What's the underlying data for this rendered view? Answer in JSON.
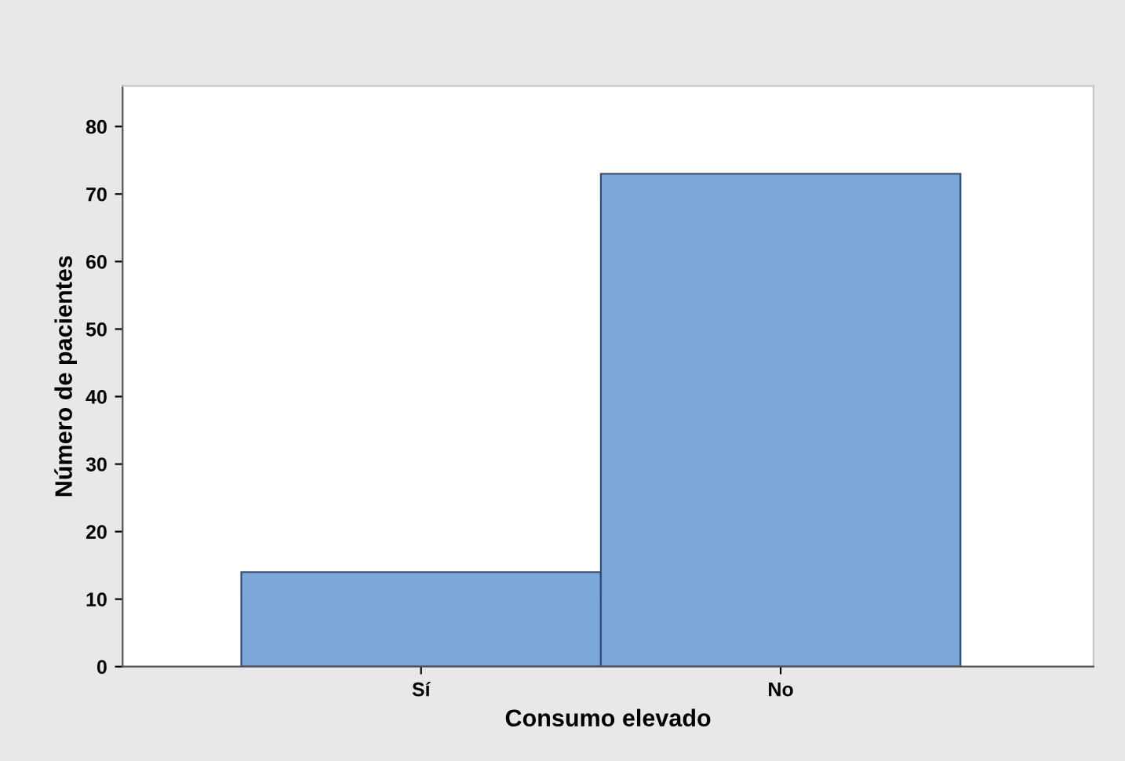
{
  "chart_data": {
    "type": "bar",
    "xlabel": "Consumo elevado",
    "ylabel": "Número de pacientes",
    "categories": [
      "Sí",
      "No"
    ],
    "values": [
      14,
      73
    ],
    "color": "#7ba7d9",
    "ylim": [
      0,
      86
    ],
    "yticks": [
      0,
      10,
      20,
      30,
      40,
      50,
      60,
      70,
      80
    ],
    "grid": false,
    "legend": false
  }
}
